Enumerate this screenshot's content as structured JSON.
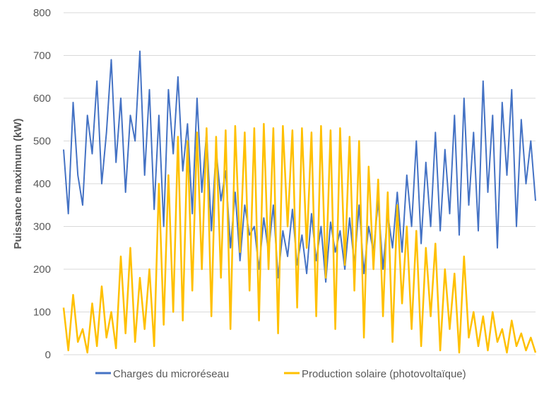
{
  "chart_data": {
    "type": "line",
    "title": "",
    "xlabel": "",
    "ylabel": "Puissance maximum (kW)",
    "ylim": [
      0,
      800
    ],
    "yticks": [
      0,
      100,
      200,
      300,
      400,
      500,
      600,
      700,
      800
    ],
    "grid": true,
    "legend_position": "bottom",
    "series": [
      {
        "name": "Charges du microréseau",
        "color": "#4472C4",
        "values": [
          480,
          330,
          590,
          420,
          350,
          560,
          470,
          640,
          400,
          520,
          690,
          450,
          600,
          380,
          560,
          500,
          710,
          420,
          620,
          340,
          560,
          300,
          620,
          470,
          650,
          430,
          540,
          330,
          600,
          380,
          520,
          290,
          480,
          360,
          430,
          250,
          380,
          220,
          350,
          280,
          300,
          200,
          320,
          240,
          350,
          180,
          290,
          230,
          340,
          210,
          280,
          190,
          330,
          220,
          300,
          170,
          310,
          240,
          290,
          200,
          320,
          210,
          350,
          190,
          300,
          240,
          360,
          200,
          330,
          250,
          380,
          240,
          420,
          300,
          500,
          260,
          450,
          300,
          520,
          290,
          480,
          330,
          560,
          280,
          600,
          350,
          520,
          290,
          640,
          380,
          560,
          250,
          590,
          420,
          620,
          300,
          550,
          400,
          500,
          360
        ]
      },
      {
        "name": "Production solaire (photovoltaïque)",
        "color": "#FFC000",
        "values": [
          110,
          10,
          140,
          30,
          60,
          5,
          120,
          20,
          160,
          40,
          100,
          15,
          230,
          50,
          250,
          30,
          180,
          60,
          200,
          20,
          400,
          70,
          420,
          100,
          510,
          80,
          500,
          150,
          520,
          200,
          530,
          90,
          510,
          180,
          525,
          60,
          535,
          240,
          520,
          150,
          530,
          80,
          540,
          200,
          530,
          50,
          535,
          300,
          525,
          110,
          530,
          250,
          520,
          90,
          535,
          180,
          525,
          60,
          530,
          210,
          510,
          150,
          500,
          40,
          440,
          200,
          410,
          90,
          380,
          30,
          350,
          120,
          300,
          60,
          290,
          20,
          250,
          90,
          260,
          10,
          200,
          60,
          190,
          5,
          230,
          40,
          100,
          20,
          90,
          10,
          100,
          30,
          60,
          5,
          80,
          20,
          50,
          10,
          40,
          5
        ]
      }
    ]
  }
}
